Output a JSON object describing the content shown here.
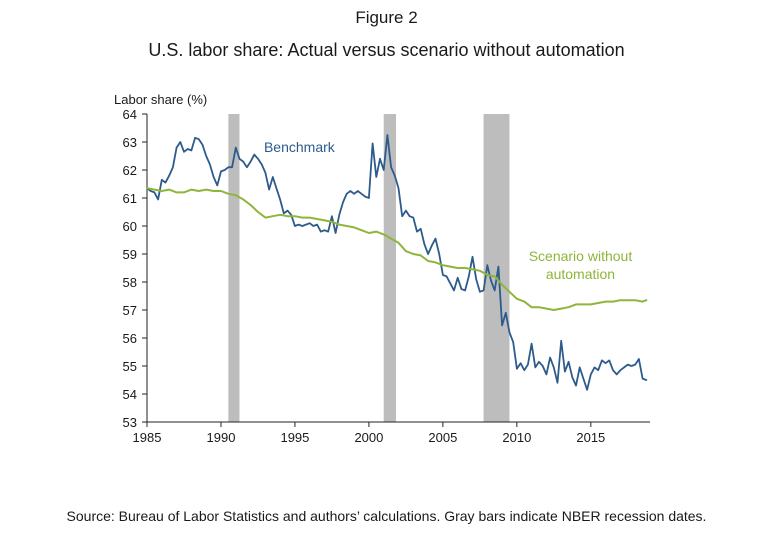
{
  "figure_label": "Figure 2",
  "title": "U.S. labor share: Actual versus scenario without automation",
  "source_note": "Source: Bureau of Labor Statistics and authors’ calculations. Gray bars indicate NBER recession dates.",
  "colors": {
    "benchmark": "#2d5b8c",
    "scenario": "#8fb53a",
    "recession": "#bdbdbd",
    "axis": "#222222"
  },
  "chart_data": {
    "type": "line",
    "title": "U.S. labor share: Actual versus scenario without automation",
    "xlabel": "",
    "ylabel": "Labor share (%)",
    "xlim": [
      1985,
      2019
    ],
    "ylim": [
      53,
      64
    ],
    "x_ticks": [
      1985,
      1990,
      1995,
      2000,
      2005,
      2010,
      2015
    ],
    "y_ticks": [
      53,
      54,
      55,
      56,
      57,
      58,
      59,
      60,
      61,
      62,
      63,
      64
    ],
    "grid": false,
    "recessions": [
      [
        1990.5,
        1991.25
      ],
      [
        2001.0,
        2001.83
      ],
      [
        2007.75,
        2009.5
      ]
    ],
    "annotations": [
      {
        "series": "Benchmark",
        "lines": [
          "Benchmark"
        ],
        "x": 1995.3,
        "y": 62.65
      },
      {
        "series": "Scenario without automation",
        "lines": [
          "Scenario without",
          "automation"
        ],
        "x": 2014.3,
        "y": 58.75
      }
    ],
    "series": [
      {
        "name": "Benchmark",
        "x": [
          1985.0,
          1985.25,
          1985.5,
          1985.75,
          1986.0,
          1986.25,
          1986.5,
          1986.75,
          1987.0,
          1987.25,
          1987.5,
          1987.75,
          1988.0,
          1988.25,
          1988.5,
          1988.75,
          1989.0,
          1989.25,
          1989.5,
          1989.75,
          1990.0,
          1990.25,
          1990.5,
          1990.75,
          1991.0,
          1991.25,
          1991.5,
          1991.75,
          1992.0,
          1992.25,
          1992.5,
          1992.75,
          1993.0,
          1993.25,
          1993.5,
          1993.75,
          1994.0,
          1994.25,
          1994.5,
          1994.75,
          1995.0,
          1995.25,
          1995.5,
          1995.75,
          1996.0,
          1996.25,
          1996.5,
          1996.75,
          1997.0,
          1997.25,
          1997.5,
          1997.75,
          1998.0,
          1998.25,
          1998.5,
          1998.75,
          1999.0,
          1999.25,
          1999.5,
          1999.75,
          2000.0,
          2000.25,
          2000.5,
          2000.75,
          2001.0,
          2001.25,
          2001.5,
          2001.75,
          2002.0,
          2002.25,
          2002.5,
          2002.75,
          2003.0,
          2003.25,
          2003.5,
          2003.75,
          2004.0,
          2004.25,
          2004.5,
          2004.75,
          2005.0,
          2005.25,
          2005.5,
          2005.75,
          2006.0,
          2006.25,
          2006.5,
          2006.75,
          2007.0,
          2007.25,
          2007.5,
          2007.75,
          2008.0,
          2008.25,
          2008.5,
          2008.75,
          2009.0,
          2009.25,
          2009.5,
          2009.75,
          2010.0,
          2010.25,
          2010.5,
          2010.75,
          2011.0,
          2011.25,
          2011.5,
          2011.75,
          2012.0,
          2012.25,
          2012.5,
          2012.75,
          2013.0,
          2013.25,
          2013.5,
          2013.75,
          2014.0,
          2014.25,
          2014.5,
          2014.75,
          2015.0,
          2015.25,
          2015.5,
          2015.75,
          2016.0,
          2016.25,
          2016.5,
          2016.75,
          2017.0,
          2017.25,
          2017.5,
          2017.75,
          2018.0,
          2018.25,
          2018.5,
          2018.75
        ],
        "values": [
          61.35,
          61.25,
          61.2,
          60.95,
          61.65,
          61.55,
          61.8,
          62.1,
          62.8,
          63.0,
          62.65,
          62.75,
          62.7,
          63.15,
          63.1,
          62.9,
          62.5,
          62.2,
          61.75,
          61.45,
          61.95,
          62.0,
          62.1,
          62.1,
          62.8,
          62.4,
          62.3,
          62.1,
          62.3,
          62.55,
          62.4,
          62.2,
          61.9,
          61.3,
          61.75,
          61.35,
          60.95,
          60.45,
          60.55,
          60.4,
          60.0,
          60.05,
          60.0,
          60.05,
          60.1,
          60.0,
          60.05,
          59.8,
          59.85,
          59.8,
          60.35,
          59.75,
          60.4,
          60.85,
          61.15,
          61.25,
          61.15,
          61.25,
          61.15,
          61.05,
          61.0,
          62.95,
          61.75,
          62.4,
          62.0,
          63.25,
          62.1,
          61.8,
          61.35,
          60.35,
          60.55,
          60.35,
          60.3,
          59.8,
          59.9,
          59.35,
          59.0,
          59.3,
          59.55,
          59.0,
          58.25,
          58.2,
          57.95,
          57.7,
          58.15,
          57.75,
          57.7,
          58.2,
          58.9,
          58.1,
          57.65,
          57.7,
          58.6,
          58.05,
          57.7,
          58.55,
          56.45,
          56.9,
          56.2,
          55.85,
          54.9,
          55.1,
          54.85,
          55.05,
          55.8,
          54.95,
          55.15,
          55.0,
          54.7,
          55.3,
          54.95,
          54.4,
          55.9,
          54.8,
          55.15,
          54.6,
          54.3,
          54.95,
          54.55,
          54.15,
          54.7,
          54.95,
          54.85,
          55.2,
          55.1,
          55.2,
          54.85,
          54.7,
          54.85,
          54.95,
          55.05,
          55.0,
          55.05,
          55.25,
          54.55,
          54.5
        ]
      },
      {
        "name": "Scenario without automation",
        "x": [
          1985.0,
          1985.5,
          1986.0,
          1986.5,
          1987.0,
          1987.5,
          1988.0,
          1988.5,
          1989.0,
          1989.5,
          1990.0,
          1990.5,
          1991.0,
          1991.5,
          1992.0,
          1992.5,
          1993.0,
          1993.5,
          1994.0,
          1994.5,
          1995.0,
          1995.5,
          1996.0,
          1996.5,
          1997.0,
          1997.5,
          1998.0,
          1998.5,
          1999.0,
          1999.5,
          2000.0,
          2000.5,
          2001.0,
          2001.5,
          2002.0,
          2002.5,
          2003.0,
          2003.5,
          2004.0,
          2004.5,
          2005.0,
          2005.5,
          2006.0,
          2006.5,
          2007.0,
          2007.5,
          2008.0,
          2008.5,
          2009.0,
          2009.5,
          2010.0,
          2010.5,
          2011.0,
          2011.5,
          2012.0,
          2012.5,
          2013.0,
          2013.5,
          2014.0,
          2014.5,
          2015.0,
          2015.5,
          2016.0,
          2016.5,
          2017.0,
          2017.5,
          2018.0,
          2018.5,
          2018.75
        ],
        "values": [
          61.35,
          61.3,
          61.25,
          61.3,
          61.2,
          61.2,
          61.3,
          61.25,
          61.3,
          61.25,
          61.25,
          61.15,
          61.1,
          60.95,
          60.75,
          60.5,
          60.3,
          60.35,
          60.4,
          60.35,
          60.35,
          60.3,
          60.3,
          60.25,
          60.2,
          60.15,
          60.05,
          60.0,
          59.95,
          59.85,
          59.75,
          59.8,
          59.7,
          59.55,
          59.4,
          59.1,
          59.0,
          58.95,
          58.75,
          58.7,
          58.6,
          58.55,
          58.5,
          58.5,
          58.45,
          58.4,
          58.25,
          58.2,
          57.9,
          57.65,
          57.4,
          57.3,
          57.1,
          57.1,
          57.05,
          57.0,
          57.05,
          57.1,
          57.2,
          57.2,
          57.2,
          57.25,
          57.3,
          57.3,
          57.35,
          57.35,
          57.35,
          57.3,
          57.35
        ]
      }
    ]
  }
}
